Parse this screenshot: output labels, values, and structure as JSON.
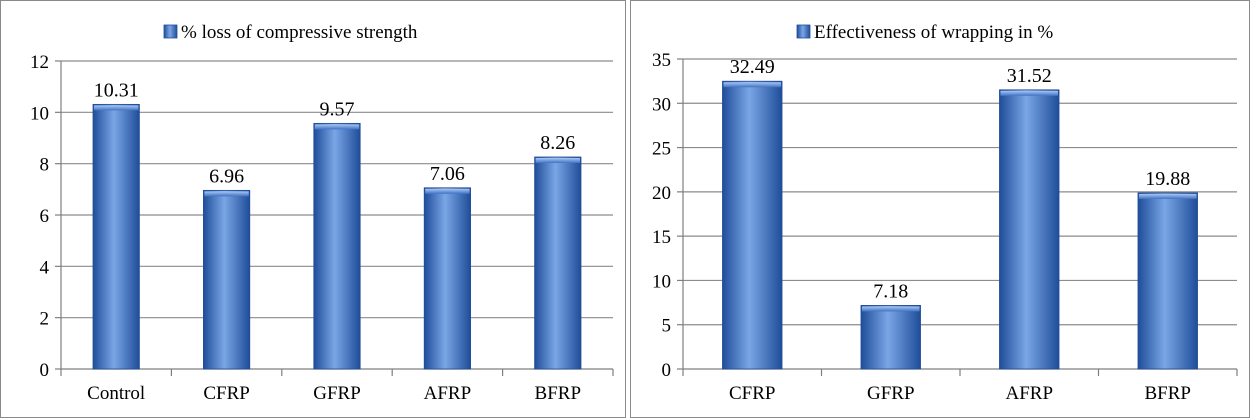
{
  "colors": {
    "bar_light": "#7aa6e6",
    "bar_mid": "#3f73c4",
    "bar_dark": "#1f4d99",
    "grid": "#8c8c8c",
    "axis": "#7f7f7f",
    "panel_border": "#8a8a8a"
  },
  "chart_data": [
    {
      "type": "bar",
      "categories": [
        "Control",
        "CFRP",
        "GFRP",
        "AFRP",
        "BFRP"
      ],
      "series": [
        {
          "name": "% loss of compressive strength",
          "values": [
            10.31,
            6.96,
            9.57,
            7.06,
            8.26
          ]
        }
      ],
      "data_labels": [
        "10.31",
        "6.96",
        "9.57",
        "7.06",
        "8.26"
      ],
      "yticks": [
        "0",
        "2",
        "4",
        "6",
        "8",
        "10",
        "12"
      ],
      "ylim": [
        0,
        12
      ],
      "grid": true,
      "legend_position": "top"
    },
    {
      "type": "bar",
      "categories": [
        "CFRP",
        "GFRP",
        "AFRP",
        "BFRP"
      ],
      "series": [
        {
          "name": "Effectiveness of wrapping in %",
          "values": [
            32.49,
            7.18,
            31.52,
            19.88
          ]
        }
      ],
      "data_labels": [
        "32.49",
        "7.18",
        "31.52",
        "19.88"
      ],
      "yticks": [
        "0",
        "5",
        "10",
        "15",
        "20",
        "25",
        "30",
        "35"
      ],
      "ylim": [
        0,
        35
      ],
      "grid": true,
      "legend_position": "top"
    }
  ]
}
